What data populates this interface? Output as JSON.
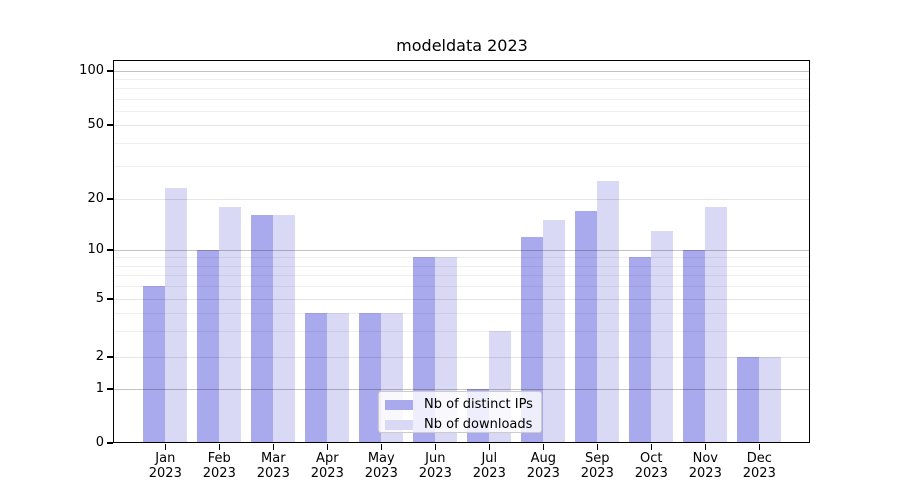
{
  "chart_data": {
    "type": "bar",
    "title": "modeldata 2023",
    "year": "2023",
    "categories": [
      "Jan",
      "Feb",
      "Mar",
      "Apr",
      "May",
      "Jun",
      "Jul",
      "Aug",
      "Sep",
      "Oct",
      "Nov",
      "Dec"
    ],
    "series": [
      {
        "name": "Nb of distinct IPs",
        "color": "#a9a9ee",
        "values": [
          6,
          10,
          16,
          4,
          4,
          9,
          1,
          12,
          17,
          9,
          10,
          2
        ]
      },
      {
        "name": "Nb of downloads",
        "color": "#d9d9f6",
        "values": [
          23,
          18,
          16,
          4,
          4,
          9,
          3,
          15,
          25,
          13,
          18,
          2
        ]
      }
    ],
    "xlabel": "",
    "ylabel": "",
    "yscale": "symlog-like",
    "ylim": [
      0,
      113
    ],
    "y_ticks": [
      0,
      1,
      2,
      5,
      10,
      20,
      50,
      100
    ],
    "y_minor_ticks": [
      3,
      4,
      6,
      7,
      8,
      9,
      30,
      40,
      60,
      70,
      80,
      90
    ],
    "grid": true,
    "legend_position": "lower center"
  }
}
